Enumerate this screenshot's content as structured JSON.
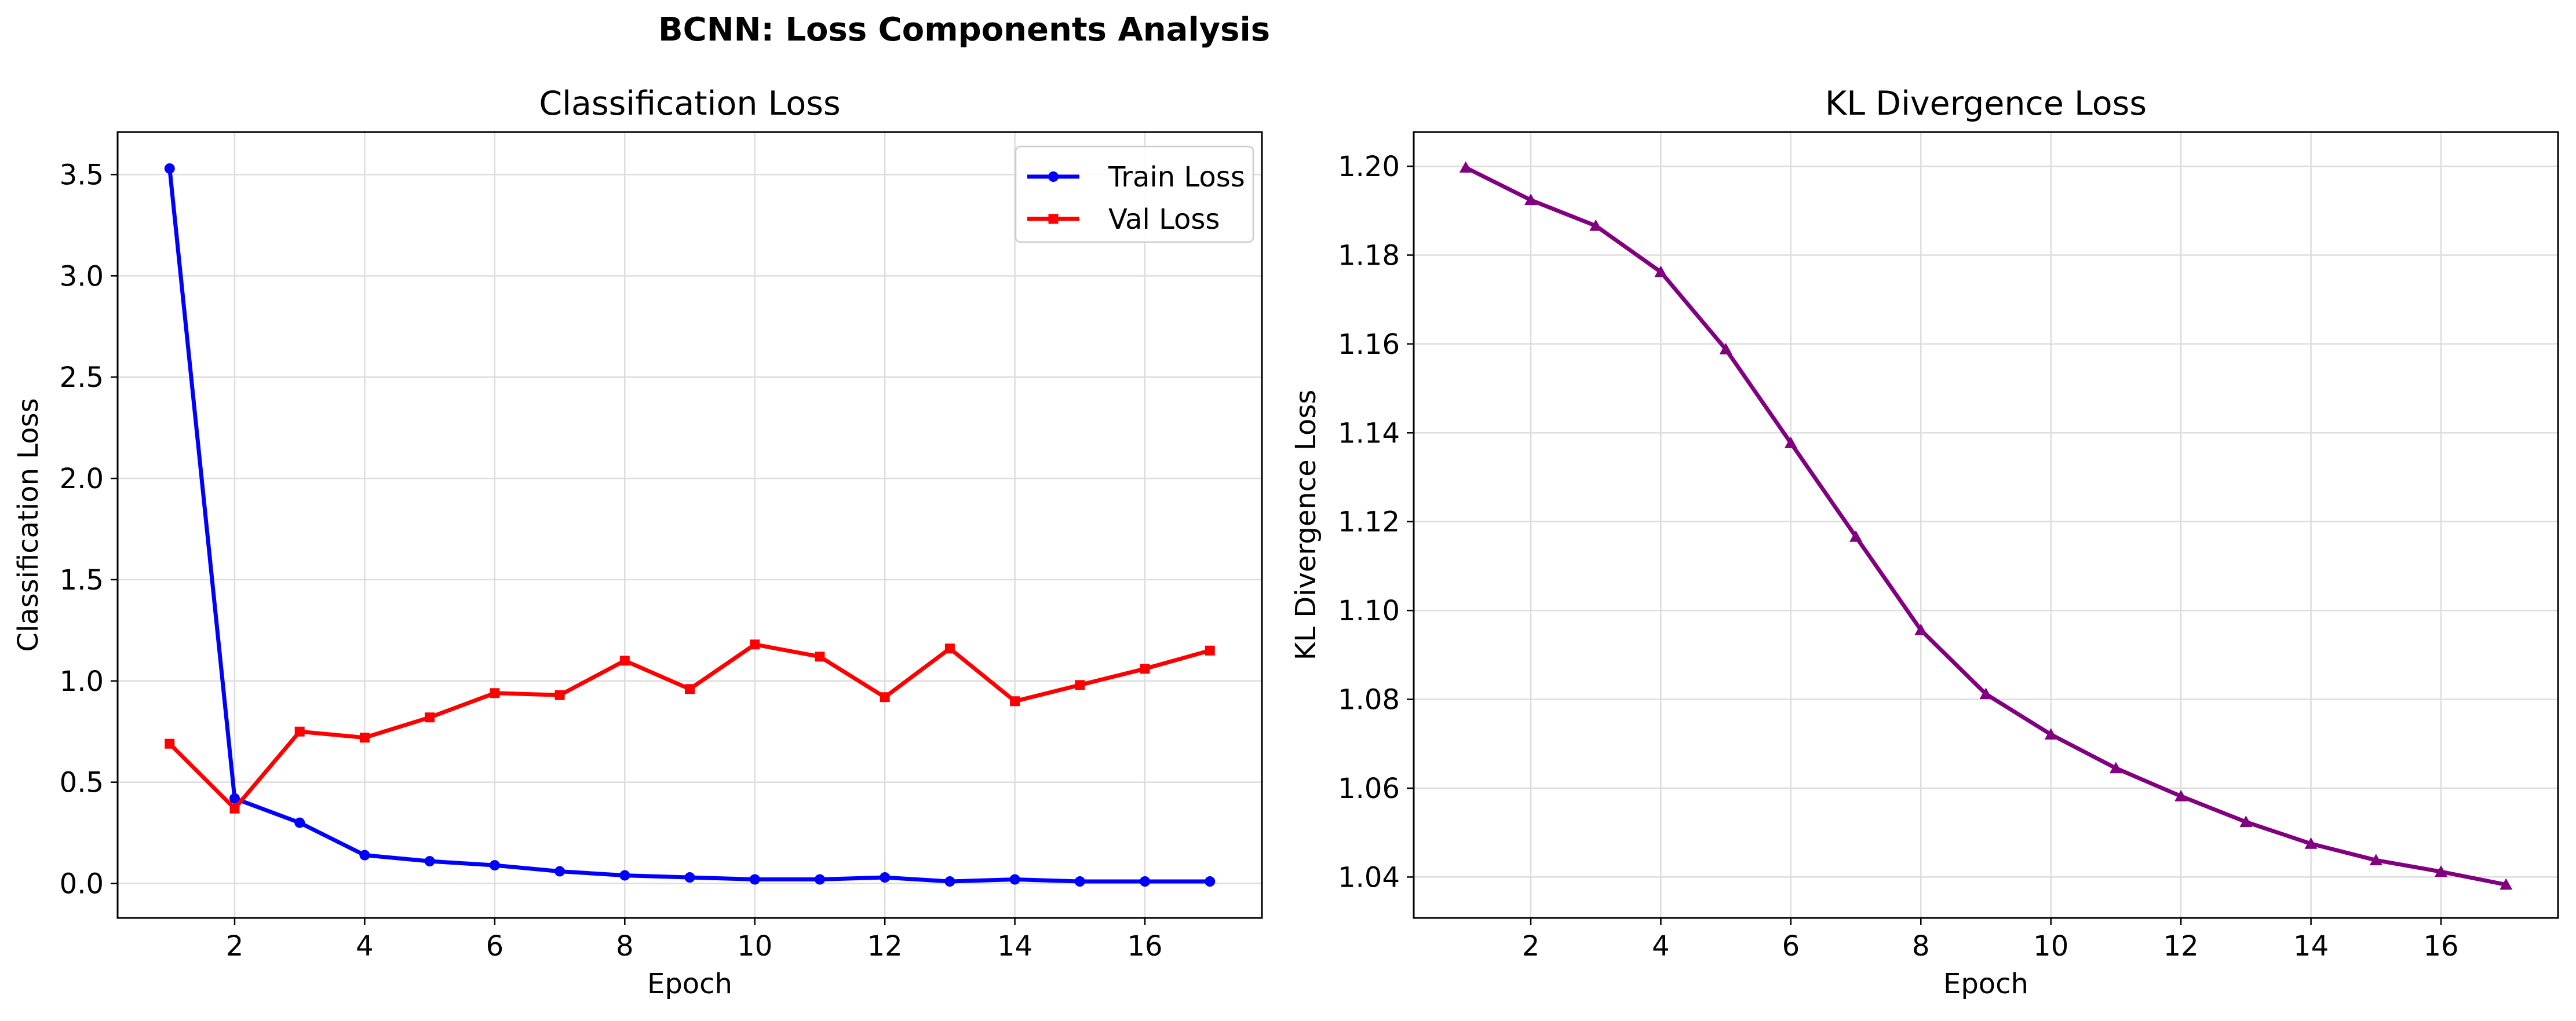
{
  "figure": {
    "suptitle": "BCNN: Loss Components Analysis"
  },
  "chart_data": [
    {
      "type": "line",
      "title": "Classification Loss",
      "xlabel": "Epoch",
      "ylabel": "Classification Loss",
      "xlim": [
        0.2,
        17.8
      ],
      "ylim": [
        -0.17,
        3.71
      ],
      "xticks": [
        2,
        4,
        6,
        8,
        10,
        12,
        14,
        16
      ],
      "yticks": [
        0.0,
        0.5,
        1.0,
        1.5,
        2.0,
        2.5,
        3.0,
        3.5
      ],
      "ytick_decimals": 1,
      "grid": true,
      "legend": "top-right",
      "x": [
        1,
        2,
        3,
        4,
        5,
        6,
        7,
        8,
        9,
        10,
        11,
        12,
        13,
        14,
        15,
        16,
        17
      ],
      "series": [
        {
          "name": "Train Loss",
          "color": "#0000ff",
          "marker": "circle",
          "values": [
            3.53,
            0.42,
            0.3,
            0.14,
            0.11,
            0.09,
            0.06,
            0.04,
            0.03,
            0.02,
            0.02,
            0.03,
            0.01,
            0.02,
            0.01,
            0.01,
            0.01
          ]
        },
        {
          "name": "Val Loss",
          "color": "#ff0000",
          "marker": "square",
          "values": [
            0.69,
            0.37,
            0.75,
            0.72,
            0.82,
            0.94,
            0.93,
            1.1,
            0.96,
            1.18,
            1.12,
            0.92,
            1.16,
            0.9,
            0.98,
            1.06,
            1.15
          ]
        }
      ]
    },
    {
      "type": "line",
      "title": "KL Divergence Loss",
      "xlabel": "Epoch",
      "ylabel": "KL Divergence Loss",
      "xlim": [
        0.2,
        17.8
      ],
      "ylim": [
        1.0308,
        1.2077
      ],
      "xticks": [
        2,
        4,
        6,
        8,
        10,
        12,
        14,
        16
      ],
      "yticks": [
        1.04,
        1.06,
        1.08,
        1.1,
        1.12,
        1.14,
        1.16,
        1.18,
        1.2
      ],
      "ytick_decimals": 2,
      "grid": true,
      "legend": "none",
      "x": [
        1,
        2,
        3,
        4,
        5,
        6,
        7,
        8,
        9,
        10,
        11,
        12,
        13,
        14,
        15,
        16,
        17
      ],
      "series": [
        {
          "color": "#800080",
          "marker": "triangle",
          "values": [
            1.1997,
            1.1924,
            1.1866,
            1.1762,
            1.1588,
            1.1377,
            1.1166,
            1.0956,
            1.0812,
            1.0721,
            1.0645,
            1.0582,
            1.0524,
            1.0475,
            1.0438,
            1.0412,
            1.0383
          ]
        }
      ]
    }
  ]
}
